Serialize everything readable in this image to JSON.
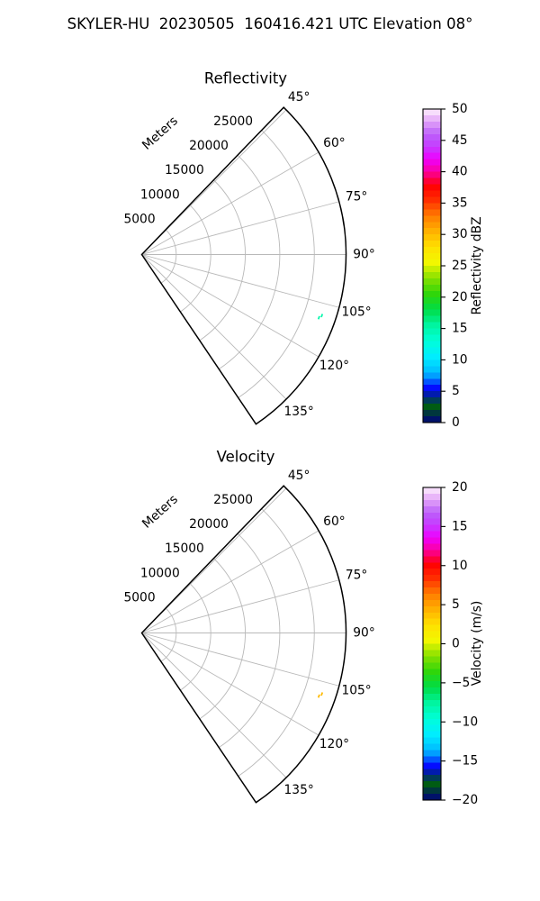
{
  "title": "SKYLER-HU  20230505  160416.421 UTC Elevation 08°",
  "colors": {
    "background": "#ffffff",
    "grid": "#b9b9b9",
    "axis": "#000000",
    "text": "#000000"
  },
  "colormap_stops": [
    [
      0.0,
      "#000080"
    ],
    [
      0.026,
      "#003045"
    ],
    [
      0.051,
      "#005e11"
    ],
    [
      0.08,
      "#00297e"
    ],
    [
      0.107,
      "#0402ff"
    ],
    [
      0.157,
      "#00b8ff"
    ],
    [
      0.208,
      "#00ecff"
    ],
    [
      0.26,
      "#00ffd8"
    ],
    [
      0.31,
      "#00f5a0"
    ],
    [
      0.36,
      "#00dc46"
    ],
    [
      0.41,
      "#2fd60a"
    ],
    [
      0.46,
      "#85e000"
    ],
    [
      0.51,
      "#f2f700"
    ],
    [
      0.56,
      "#ffe000"
    ],
    [
      0.61,
      "#ffb000"
    ],
    [
      0.66,
      "#ff7b00"
    ],
    [
      0.71,
      "#ff2d00"
    ],
    [
      0.755,
      "#ff0002"
    ],
    [
      0.8,
      "#fb00a0"
    ],
    [
      0.84,
      "#ee00ff"
    ],
    [
      0.88,
      "#c53cff"
    ],
    [
      0.92,
      "#bb60f9"
    ],
    [
      0.96,
      "#e2a3f7"
    ],
    [
      1.0,
      "#fef0fe"
    ]
  ],
  "chart_data": [
    {
      "type": "polar-sector",
      "title": "Reflectivity",
      "radial_axis_label": "Meters",
      "sector_deg": [
        44,
        146
      ],
      "max_range_m": 29600,
      "angle_ticks_deg": [
        45,
        60,
        75,
        90,
        105,
        120,
        135
      ],
      "angle_tick_labels": [
        "45°",
        "60°",
        "75°",
        "90°",
        "105°",
        "120°",
        "135°"
      ],
      "radial_ticks_m": [
        5000,
        10000,
        15000,
        20000,
        25000
      ],
      "radial_tick_labels": [
        "5000",
        "10000",
        "15000",
        "20000",
        "25000"
      ],
      "grid": true,
      "colorbar": {
        "label": "Reflectivity dBZ",
        "min": 0,
        "max": 50,
        "ticks": [
          0,
          5,
          10,
          15,
          20,
          25,
          30,
          35,
          40,
          45,
          50
        ],
        "tick_labels": [
          "0",
          "5",
          "10",
          "15",
          "20",
          "25",
          "30",
          "35",
          "40",
          "45",
          "50"
        ]
      },
      "gates": [
        {
          "az_start": 108.2,
          "az_end": 109.2,
          "range_m": 27550,
          "value": 15
        },
        {
          "az_start": 109.1,
          "az_end": 110.1,
          "range_m": 27250,
          "value": 15
        }
      ]
    },
    {
      "type": "polar-sector",
      "title": "Velocity",
      "radial_axis_label": "Meters",
      "sector_deg": [
        44,
        146
      ],
      "max_range_m": 29600,
      "angle_ticks_deg": [
        45,
        60,
        75,
        90,
        105,
        120,
        135
      ],
      "angle_tick_labels": [
        "45°",
        "60°",
        "75°",
        "90°",
        "105°",
        "120°",
        "135°"
      ],
      "radial_ticks_m": [
        5000,
        10000,
        15000,
        20000,
        25000
      ],
      "radial_tick_labels": [
        "5000",
        "10000",
        "15000",
        "20000",
        "25000"
      ],
      "grid": true,
      "colorbar": {
        "label": "Velocity (m/s)",
        "min": -20,
        "max": 20,
        "ticks": [
          20,
          15,
          10,
          5,
          0,
          -5,
          -10,
          -15,
          -20
        ],
        "tick_labels": [
          "20",
          "15",
          "10",
          "5",
          "0",
          "−5",
          "−10",
          "−15",
          "−20"
        ]
      },
      "gates": [
        {
          "az_start": 108.2,
          "az_end": 109.2,
          "range_m": 27550,
          "value": 4
        },
        {
          "az_start": 109.1,
          "az_end": 110.1,
          "range_m": 27250,
          "value": 4
        }
      ]
    }
  ]
}
